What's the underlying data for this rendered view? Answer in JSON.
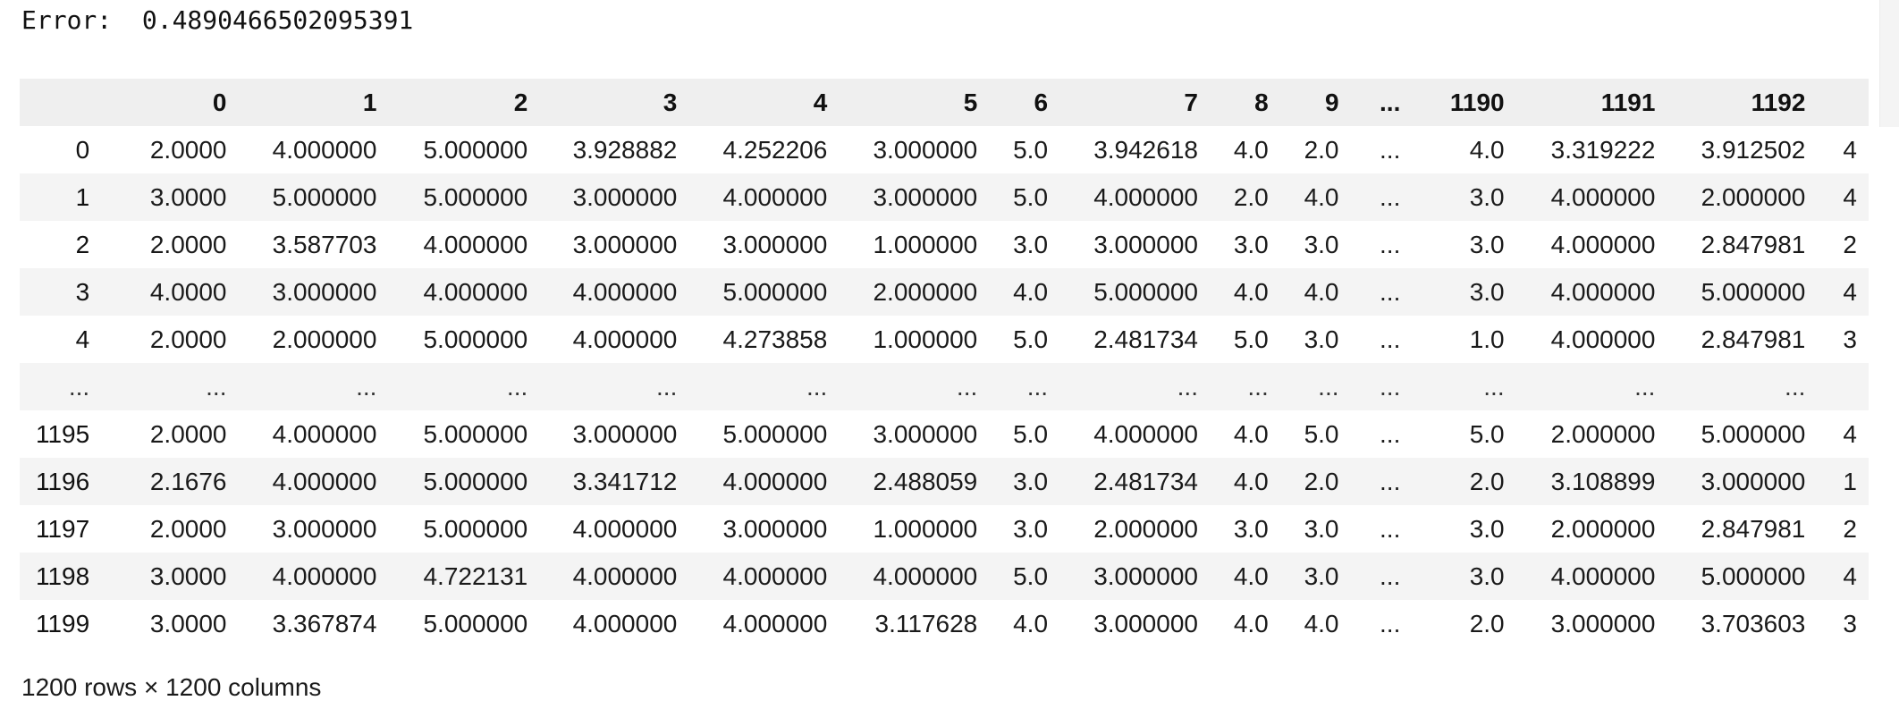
{
  "output": {
    "error_line": "Error:  0.4890466502095391"
  },
  "dataframe": {
    "columns": [
      "0",
      "1",
      "2",
      "3",
      "4",
      "5",
      "6",
      "7",
      "8",
      "9",
      "...",
      "1190",
      "1191",
      "1192",
      ""
    ],
    "rows": [
      {
        "index": "0",
        "cells": [
          "2.0000",
          "4.000000",
          "5.000000",
          "3.928882",
          "4.252206",
          "3.000000",
          "5.0",
          "3.942618",
          "4.0",
          "2.0",
          "...",
          "4.0",
          "3.319222",
          "3.912502",
          "4"
        ]
      },
      {
        "index": "1",
        "cells": [
          "3.0000",
          "5.000000",
          "5.000000",
          "3.000000",
          "4.000000",
          "3.000000",
          "5.0",
          "4.000000",
          "2.0",
          "4.0",
          "...",
          "3.0",
          "4.000000",
          "2.000000",
          "4"
        ]
      },
      {
        "index": "2",
        "cells": [
          "2.0000",
          "3.587703",
          "4.000000",
          "3.000000",
          "3.000000",
          "1.000000",
          "3.0",
          "3.000000",
          "3.0",
          "3.0",
          "...",
          "3.0",
          "4.000000",
          "2.847981",
          "2"
        ]
      },
      {
        "index": "3",
        "cells": [
          "4.0000",
          "3.000000",
          "4.000000",
          "4.000000",
          "5.000000",
          "2.000000",
          "4.0",
          "5.000000",
          "4.0",
          "4.0",
          "...",
          "3.0",
          "4.000000",
          "5.000000",
          "4"
        ]
      },
      {
        "index": "4",
        "cells": [
          "2.0000",
          "2.000000",
          "5.000000",
          "4.000000",
          "4.273858",
          "1.000000",
          "5.0",
          "2.481734",
          "5.0",
          "3.0",
          "...",
          "1.0",
          "4.000000",
          "2.847981",
          "3"
        ]
      },
      {
        "index": "...",
        "cells": [
          "...",
          "...",
          "...",
          "...",
          "...",
          "...",
          "...",
          "...",
          "...",
          "...",
          "...",
          "...",
          "...",
          "...",
          ""
        ]
      },
      {
        "index": "1195",
        "cells": [
          "2.0000",
          "4.000000",
          "5.000000",
          "3.000000",
          "5.000000",
          "3.000000",
          "5.0",
          "4.000000",
          "4.0",
          "5.0",
          "...",
          "5.0",
          "2.000000",
          "5.000000",
          "4"
        ]
      },
      {
        "index": "1196",
        "cells": [
          "2.1676",
          "4.000000",
          "5.000000",
          "3.341712",
          "4.000000",
          "2.488059",
          "3.0",
          "2.481734",
          "4.0",
          "2.0",
          "...",
          "2.0",
          "3.108899",
          "3.000000",
          "1"
        ]
      },
      {
        "index": "1197",
        "cells": [
          "2.0000",
          "3.000000",
          "5.000000",
          "4.000000",
          "3.000000",
          "1.000000",
          "3.0",
          "2.000000",
          "3.0",
          "3.0",
          "...",
          "3.0",
          "2.000000",
          "2.847981",
          "2"
        ]
      },
      {
        "index": "1198",
        "cells": [
          "3.0000",
          "4.000000",
          "4.722131",
          "4.000000",
          "4.000000",
          "4.000000",
          "5.0",
          "3.000000",
          "4.0",
          "3.0",
          "...",
          "3.0",
          "4.000000",
          "5.000000",
          "4"
        ]
      },
      {
        "index": "1199",
        "cells": [
          "3.0000",
          "3.367874",
          "5.000000",
          "4.000000",
          "4.000000",
          "3.117628",
          "4.0",
          "3.000000",
          "4.0",
          "4.0",
          "...",
          "2.0",
          "3.000000",
          "3.703603",
          "3"
        ]
      }
    ],
    "summary": "1200 rows × 1200 columns"
  }
}
